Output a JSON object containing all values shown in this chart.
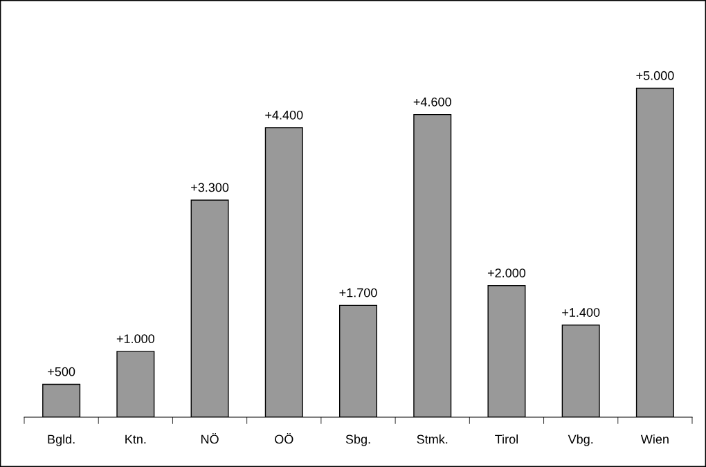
{
  "chart_data": {
    "type": "bar",
    "categories": [
      "Bgld.",
      "Ktn.",
      "NÖ",
      "OÖ",
      "Sbg.",
      "Stmk.",
      "Tirol",
      "Vbg.",
      "Wien"
    ],
    "values": [
      500,
      1000,
      3300,
      4400,
      1700,
      4600,
      2000,
      1400,
      5000
    ],
    "value_labels": [
      "+500",
      "+1.000",
      "+3.300",
      "+4.400",
      "+1.700",
      "+4.600",
      "+2.000",
      "+1.400",
      "+5.000"
    ],
    "color": "#999999",
    "grid": false,
    "legend": false
  }
}
